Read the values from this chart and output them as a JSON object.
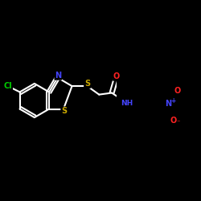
{
  "background_color": "#000000",
  "atom_colors": {
    "Cl": "#00cc00",
    "N": "#4444ff",
    "S": "#ccaa00",
    "O": "#ff2222",
    "C": "#ffffff",
    "H": "#ffffff"
  },
  "bond_color": "#ffffff",
  "figsize": [
    2.5,
    2.5
  ],
  "dpi": 100
}
